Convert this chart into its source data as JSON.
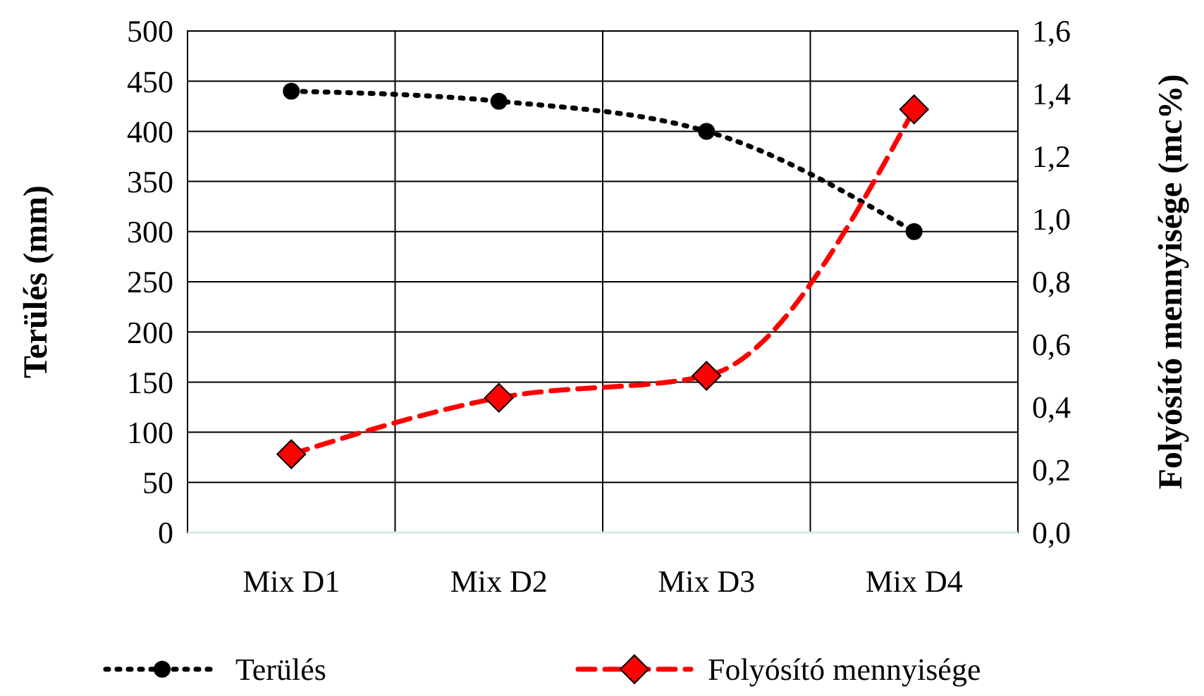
{
  "chart_data": {
    "type": "line",
    "categories": [
      "Mix D1",
      "Mix D2",
      "Mix D3",
      "Mix D4"
    ],
    "ylabel": "Terülés (mm)",
    "y2label": "Folyósító mennyisége (mc%)",
    "ylim": [
      0,
      500
    ],
    "yticks": [
      0,
      50,
      100,
      150,
      200,
      250,
      300,
      350,
      400,
      450,
      500
    ],
    "y2lim": [
      0,
      1.6
    ],
    "y2ticks": [
      {
        "value": 0,
        "label": "0,0"
      },
      {
        "value": 0.2,
        "label": "0,2"
      },
      {
        "value": 0.4,
        "label": "0,4"
      },
      {
        "value": 0.6,
        "label": "0,6"
      },
      {
        "value": 0.8,
        "label": "0,8"
      },
      {
        "value": 1,
        "label": "1,0"
      },
      {
        "value": 1.2,
        "label": "1,2"
      },
      {
        "value": 1.4,
        "label": "1,4"
      },
      {
        "value": 1.6,
        "label": "1,6"
      }
    ],
    "grid": true,
    "legend": "bottom",
    "series": [
      {
        "name": "Terülés",
        "color": "#000000",
        "values": [
          440,
          430,
          400,
          300
        ],
        "marker": "circle",
        "line_style": "dotted"
      },
      {
        "name": "Folyósító mennyisége",
        "color": "#ff0000",
        "values": [
          0.25,
          0.43,
          0.5,
          1.35
        ],
        "axis": "y2",
        "marker": "diamond",
        "line_style": "dashed"
      }
    ]
  }
}
